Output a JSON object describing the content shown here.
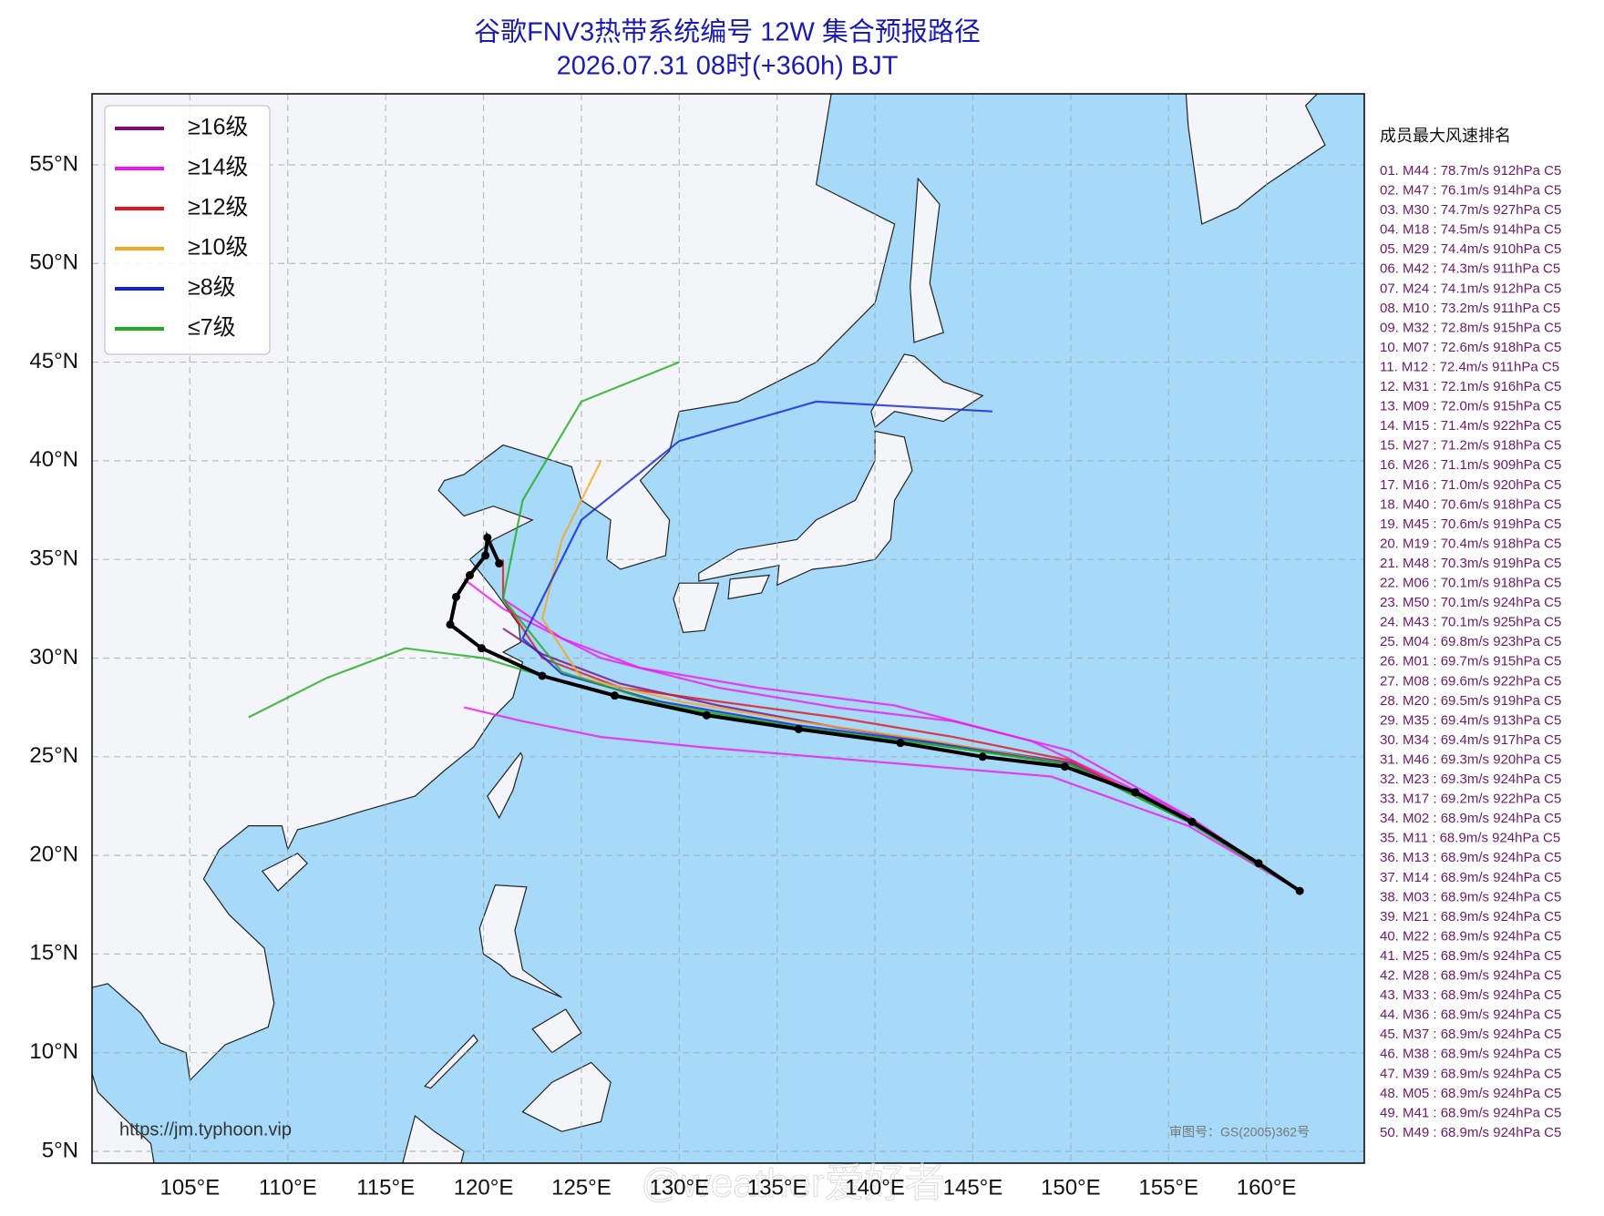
{
  "title": "谷歌FNV3热带系统编号 12W 集合预报路径",
  "subtitle": "2026.07.31 08时(+360h) BJT",
  "lon_lim": [
    100,
    165
  ],
  "lat_lim": [
    4.4,
    58.6
  ],
  "lon_ticks": [
    {
      "value": 105,
      "label": "105°E"
    },
    {
      "value": 110,
      "label": "110°E"
    },
    {
      "value": 115,
      "label": "115°E"
    },
    {
      "value": 120,
      "label": "120°E"
    },
    {
      "value": 125,
      "label": "125°E"
    },
    {
      "value": 130,
      "label": "130°E"
    },
    {
      "value": 135,
      "label": "135°E"
    },
    {
      "value": 140,
      "label": "140°E"
    },
    {
      "value": 145,
      "label": "145°E"
    },
    {
      "value": 150,
      "label": "150°E"
    },
    {
      "value": 155,
      "label": "155°E"
    },
    {
      "value": 160,
      "label": "160°E"
    }
  ],
  "lat_ticks": [
    {
      "value": 5,
      "label": "5°N"
    },
    {
      "value": 10,
      "label": "10°N"
    },
    {
      "value": 15,
      "label": "15°N"
    },
    {
      "value": 20,
      "label": "20°N"
    },
    {
      "value": 25,
      "label": "25°N"
    },
    {
      "value": 30,
      "label": "30°N"
    },
    {
      "value": 35,
      "label": "35°N"
    },
    {
      "value": 40,
      "label": "40°N"
    },
    {
      "value": 45,
      "label": "45°N"
    },
    {
      "value": 50,
      "label": "50°N"
    },
    {
      "value": 55,
      "label": "55°N"
    }
  ],
  "legend": [
    {
      "label": "≥16级",
      "color": "#800a80"
    },
    {
      "label": "≥14级",
      "color": "#f015f0"
    },
    {
      "label": "≥12级",
      "color": "#e3141c"
    },
    {
      "label": "≥10级",
      "color": "#f5a623"
    },
    {
      "label": "≥8级",
      "color": "#1424d2"
    },
    {
      "label": "≤7级",
      "color": "#22aa22"
    }
  ],
  "members": [
    {
      "color": "#800a80",
      "lon": [
        161.7,
        156,
        150,
        144,
        138,
        132,
        127,
        123,
        121
      ],
      "lat": [
        18.2,
        21.8,
        24.7,
        25.6,
        26.5,
        27.6,
        28.7,
        30.2,
        31.5
      ]
    },
    {
      "color": "#f015f0",
      "lon": [
        161.7,
        156,
        150,
        144,
        138,
        132,
        126,
        121,
        119
      ],
      "lat": [
        18.2,
        22,
        25.3,
        26.8,
        27.5,
        28.5,
        30,
        32.5,
        34
      ]
    },
    {
      "color": "#f015f0",
      "lon": [
        161.7,
        156,
        149,
        143,
        137,
        131,
        126,
        122,
        119
      ],
      "lat": [
        18.2,
        21.5,
        24,
        24.5,
        25,
        25.5,
        26,
        26.8,
        27.5
      ]
    },
    {
      "color": "#f015f0",
      "lon": [
        161.7,
        155,
        148,
        141,
        134,
        128,
        124,
        121
      ],
      "lat": [
        18.2,
        22.5,
        25.8,
        27.6,
        28.5,
        29.5,
        31,
        33
      ]
    },
    {
      "color": "#e3141c",
      "lon": [
        161.7,
        156,
        150,
        144,
        138,
        132,
        127,
        123,
        121,
        121
      ],
      "lat": [
        18.2,
        21.8,
        24.8,
        26,
        27,
        27.8,
        28.5,
        30,
        33,
        35
      ]
    },
    {
      "color": "#f5a623",
      "lon": [
        161.7,
        156,
        150,
        143,
        136,
        130,
        125,
        123,
        124,
        126
      ],
      "lat": [
        18.2,
        21.7,
        24.6,
        25.8,
        26.8,
        27.8,
        29,
        32,
        36,
        40
      ]
    },
    {
      "color": "#1424d2",
      "lon": [
        161.7,
        156,
        150,
        143,
        136,
        129,
        124,
        122,
        125,
        130,
        137,
        146
      ],
      "lat": [
        18.2,
        21.7,
        24.6,
        25.7,
        26.6,
        27.8,
        29.2,
        31,
        37,
        41,
        43,
        42.5
      ]
    },
    {
      "color": "#22aa22",
      "lon": [
        161.7,
        156,
        150,
        143,
        136,
        129,
        124,
        120,
        116,
        112,
        108
      ],
      "lat": [
        18.2,
        21.7,
        24.6,
        25.6,
        26.5,
        27.6,
        28.8,
        30,
        30.5,
        29,
        27
      ]
    },
    {
      "color": "#22aa22",
      "lon": [
        161.7,
        156,
        150,
        143,
        136,
        129,
        124,
        121,
        122,
        125,
        130
      ],
      "lat": [
        18.2,
        21.7,
        24.6,
        25.6,
        26.5,
        27.7,
        29.3,
        33,
        38,
        43,
        45
      ]
    }
  ],
  "mean_track": {
    "lon": [
      161.7,
      159.6,
      156.2,
      153.3,
      149.7,
      145.5,
      141.3,
      136.1,
      131.4,
      126.7,
      123,
      119.9,
      118.3,
      118.6,
      119.3,
      120.1,
      120.2,
      120.8
    ],
    "lat": [
      18.2,
      19.6,
      21.7,
      23.2,
      24.5,
      25,
      25.7,
      26.4,
      27.1,
      28.1,
      29.1,
      30.5,
      31.7,
      33.1,
      34.2,
      35.2,
      36.1,
      34.8
    ]
  },
  "ranking_title": "成员最大风速排名",
  "ranking": [
    "01. M44 : 78.7m/s 912hPa C5",
    "02. M47 : 76.1m/s 914hPa C5",
    "03. M30 : 74.7m/s 927hPa C5",
    "04. M18 : 74.5m/s 914hPa C5",
    "05. M29 : 74.4m/s 910hPa C5",
    "06. M42 : 74.3m/s 911hPa C5",
    "07. M24 : 74.1m/s 912hPa C5",
    "08. M10 : 73.2m/s 911hPa C5",
    "09. M32 : 72.8m/s 915hPa C5",
    "10. M07 : 72.6m/s 918hPa C5",
    "11. M12 : 72.4m/s 911hPa C5",
    "12. M31 : 72.1m/s 916hPa C5",
    "13. M09 : 72.0m/s 915hPa C5",
    "14. M15 : 71.4m/s 922hPa C5",
    "15. M27 : 71.2m/s 918hPa C5",
    "16. M26 : 71.1m/s 909hPa C5",
    "17. M16 : 71.0m/s 920hPa C5",
    "18. M40 : 70.6m/s 918hPa C5",
    "19. M45 : 70.6m/s 919hPa C5",
    "20. M19 : 70.4m/s 918hPa C5",
    "21. M48 : 70.3m/s 919hPa C5",
    "22. M06 : 70.1m/s 918hPa C5",
    "23. M50 : 70.1m/s 924hPa C5",
    "24. M43 : 70.1m/s 925hPa C5",
    "25. M04 : 69.8m/s 923hPa C5",
    "26. M01 : 69.7m/s 915hPa C5",
    "27. M08 : 69.6m/s 922hPa C5",
    "28. M20 : 69.5m/s 919hPa C5",
    "29. M35 : 69.4m/s 913hPa C5",
    "30. M34 : 69.4m/s 917hPa C5",
    "31. M46 : 69.3m/s 920hPa C5",
    "32. M23 : 69.3m/s 924hPa C5",
    "33. M17 : 69.2m/s 922hPa C5",
    "34. M02 : 68.9m/s 924hPa C5",
    "35. M11 : 68.9m/s 924hPa C5",
    "36. M13 : 68.9m/s 924hPa C5",
    "37. M14 : 68.9m/s 924hPa C5",
    "38. M03 : 68.9m/s 924hPa C5",
    "39. M21 : 68.9m/s 924hPa C5",
    "40. M22 : 68.9m/s 924hPa C5",
    "41. M25 : 68.9m/s 924hPa C5",
    "42. M28 : 68.9m/s 924hPa C5",
    "43. M33 : 68.9m/s 924hPa C5",
    "44. M36 : 68.9m/s 924hPa C5",
    "45. M37 : 68.9m/s 924hPa C5",
    "46. M38 : 68.9m/s 924hPa C5",
    "47. M39 : 68.9m/s 924hPa C5",
    "48. M05 : 68.9m/s 924hPa C5",
    "49. M41 : 68.9m/s 924hPa C5",
    "50. M49 : 68.9m/s 924hPa C5"
  ],
  "source_url": "https://jm.typhoon.vip",
  "approval": "审图号：GS(2005)362号",
  "watermark": "@weather爱好者"
}
